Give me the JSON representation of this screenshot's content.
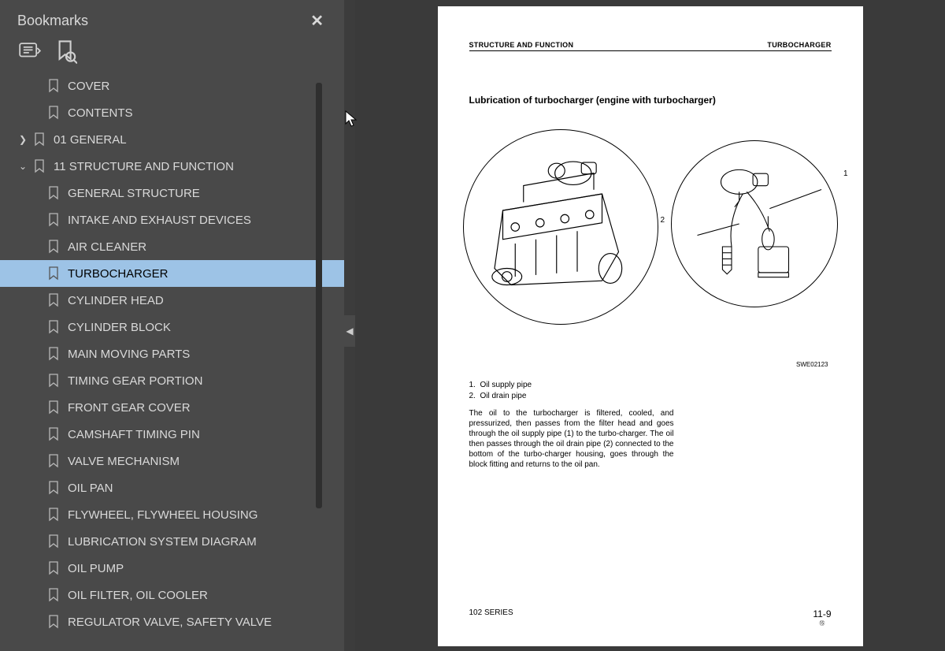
{
  "sidebar": {
    "panel_title": "Bookmarks",
    "tree": [
      {
        "level": 0,
        "label": "COVER",
        "expander": "",
        "selected": false
      },
      {
        "level": 0,
        "label": "CONTENTS",
        "expander": "",
        "selected": false
      },
      {
        "level": 0,
        "label": "01 GENERAL",
        "expander": ">",
        "selected": false
      },
      {
        "level": 0,
        "label": "11 STRUCTURE AND FUNCTION",
        "expander": "v",
        "selected": false
      },
      {
        "level": 1,
        "label": "GENERAL STRUCTURE",
        "selected": false
      },
      {
        "level": 1,
        "label": "INTAKE AND EXHAUST DEVICES",
        "selected": false
      },
      {
        "level": 1,
        "label": "AIR CLEANER",
        "selected": false
      },
      {
        "level": 1,
        "label": "TURBOCHARGER",
        "selected": true
      },
      {
        "level": 1,
        "label": "CYLINDER HEAD",
        "selected": false
      },
      {
        "level": 1,
        "label": "CYLINDER BLOCK",
        "selected": false
      },
      {
        "level": 1,
        "label": "MAIN MOVING PARTS",
        "selected": false
      },
      {
        "level": 1,
        "label": "TIMING GEAR PORTION",
        "selected": false
      },
      {
        "level": 1,
        "label": "FRONT GEAR COVER",
        "selected": false
      },
      {
        "level": 1,
        "label": "CAMSHAFT TIMING PIN",
        "selected": false
      },
      {
        "level": 1,
        "label": "VALVE MECHANISM",
        "selected": false
      },
      {
        "level": 1,
        "label": "OIL PAN",
        "selected": false
      },
      {
        "level": 1,
        "label": "FLYWHEEL, FLYWHEEL HOUSING",
        "selected": false
      },
      {
        "level": 1,
        "label": "LUBRICATION SYSTEM DIAGRAM",
        "selected": false
      },
      {
        "level": 1,
        "label": "OIL PUMP",
        "selected": false
      },
      {
        "level": 1,
        "label": "OIL FILTER, OIL COOLER",
        "selected": false
      },
      {
        "level": 1,
        "label": "REGULATOR VALVE, SAFETY VALVE",
        "selected": false
      }
    ]
  },
  "page": {
    "header_left": "STRUCTURE AND FUNCTION",
    "header_right": "TURBOCHARGER",
    "title": "Lubrication of turbocharger (engine with turbocharger)",
    "figure_code": "SWE02123",
    "callouts": {
      "c1": "1",
      "c2": "2"
    },
    "list": [
      {
        "n": "1.",
        "t": "Oil supply pipe"
      },
      {
        "n": "2.",
        "t": "Oil drain pipe"
      }
    ],
    "paragraph": "The oil to the turbocharger is filtered, cooled, and pressurized, then passes from the filter head and goes through the oil supply pipe (1) to the turbo-charger. The oil then passes through the oil drain pipe (2) connected to the bottom of the turbo-charger housing, goes through the block fitting and returns to the oil pan.",
    "footer_left": "102 SERIES",
    "footer_right": "11-9",
    "footer_sub": "⑮"
  },
  "colors": {
    "sidebar_bg": "#494949",
    "selected_bg": "#9dc3e6",
    "doc_bg": "#3a3a3a",
    "page_bg": "#ffffff"
  }
}
